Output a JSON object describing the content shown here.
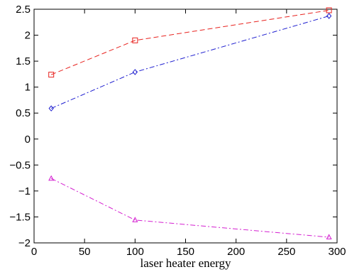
{
  "chart_data": {
    "type": "line",
    "title": "",
    "xlabel": "laser heater energy",
    "ylabel": "",
    "xlim": [
      0,
      300
    ],
    "ylim": [
      -2,
      2.5
    ],
    "xticks": [
      0,
      50,
      100,
      150,
      200,
      250,
      300
    ],
    "xtick_labels": [
      "0",
      "50",
      "100",
      "150",
      "200",
      "250",
      "300"
    ],
    "yticks": [
      -2,
      -1.5,
      -1,
      -0.5,
      0,
      0.5,
      1,
      1.5,
      2,
      2.5
    ],
    "ytick_labels": [
      "−2",
      "−1.5",
      "−1",
      "−0.5",
      "0",
      "0.5",
      "1",
      "1.5",
      "2",
      "2.5"
    ],
    "grid": false,
    "legend": "none",
    "series": [
      {
        "color": "#e8231f",
        "dash": "dashed",
        "marker": "square",
        "x": [
          17,
          100,
          292
        ],
        "y": [
          1.24,
          1.9,
          2.48
        ]
      },
      {
        "color": "#1f1fd0",
        "dash": "dashdot",
        "marker": "diamond",
        "x": [
          17,
          100,
          292
        ],
        "y": [
          0.59,
          1.29,
          2.37
        ]
      },
      {
        "color": "#d41fd0",
        "dash": "dashdot",
        "marker": "triangle",
        "x": [
          17,
          100,
          292
        ],
        "y": [
          -0.76,
          -1.56,
          -1.89
        ]
      }
    ]
  }
}
